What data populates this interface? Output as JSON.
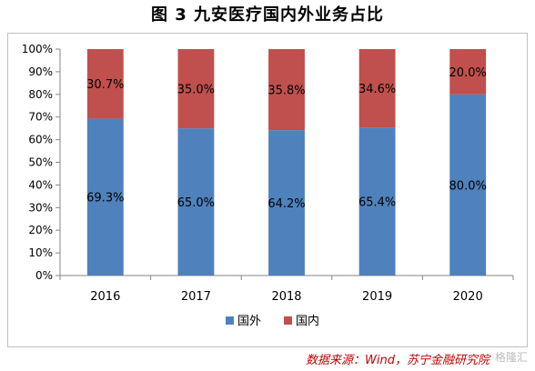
{
  "figure": {
    "title": "图 3  九安医疗国内外业务占比",
    "source": "数据来源：Wind，苏宁金融研究院",
    "watermark": "格隆汇"
  },
  "colors": {
    "overseas": "#4f81bd",
    "domestic": "#c0504d",
    "grid": "#d9d9d9",
    "axis": "#000000"
  },
  "chart_data": {
    "type": "bar",
    "stacked": true,
    "categories": [
      "2016",
      "2017",
      "2018",
      "2019",
      "2020"
    ],
    "series": [
      {
        "name": "国外",
        "values": [
          69.3,
          65.0,
          64.2,
          65.4,
          80.0
        ],
        "labels": [
          "69.3%",
          "65.0%",
          "64.2%",
          "65.4%",
          "80.0%"
        ]
      },
      {
        "name": "国内",
        "values": [
          30.7,
          35.0,
          35.8,
          34.6,
          20.0
        ],
        "labels": [
          "30.7%",
          "35.0%",
          "35.8%",
          "34.6%",
          "20.0%"
        ]
      }
    ],
    "ylim": [
      0,
      100
    ],
    "yticks": [
      "0%",
      "10%",
      "20%",
      "30%",
      "40%",
      "50%",
      "60%",
      "70%",
      "80%",
      "90%",
      "100%"
    ],
    "grid": false,
    "legend": "bottom"
  }
}
